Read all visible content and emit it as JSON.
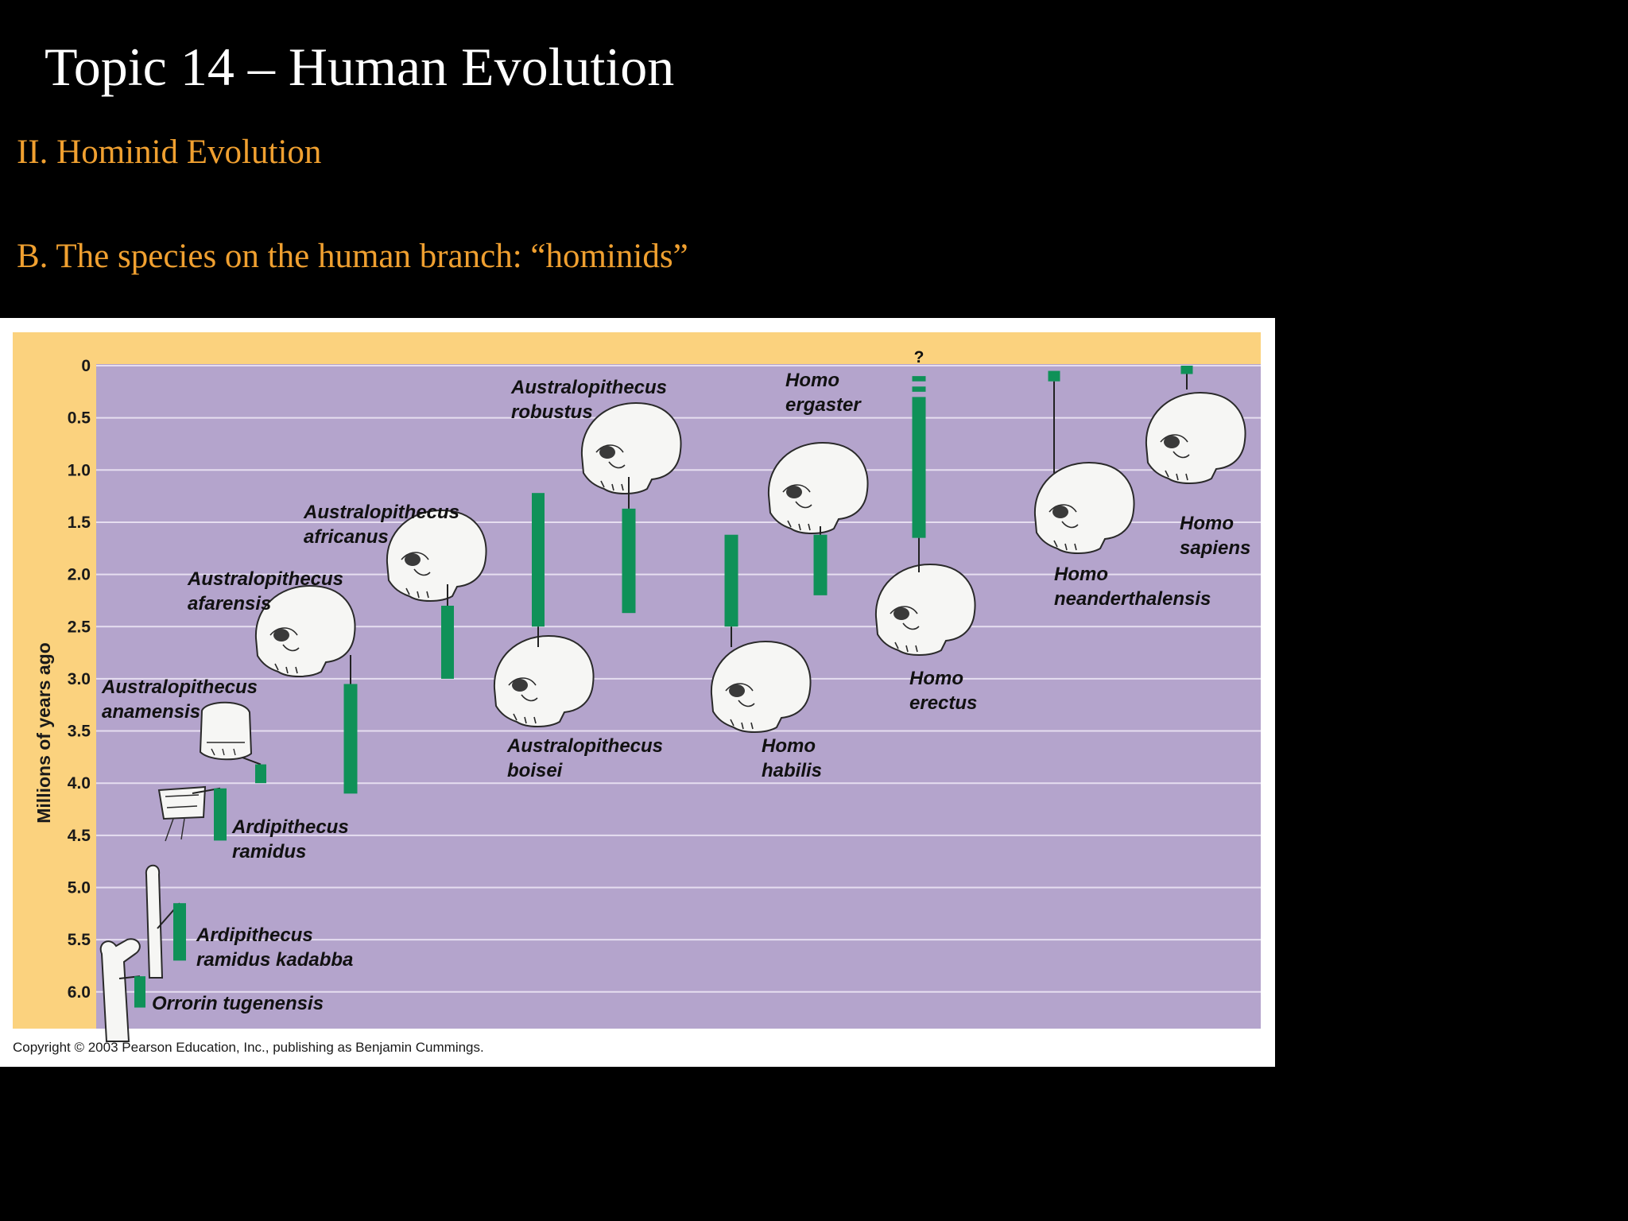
{
  "slide": {
    "title": "Topic 14 – Human Evolution",
    "subtitle1": "II. Hominid Evolution",
    "subtitle2": "B. The species on the human branch: “hominids”"
  },
  "colors": {
    "background": "#000000",
    "title": "#ffffff",
    "subtitle": "#f0a030",
    "plot_area": "#b4a4cc",
    "axis_band": "#fbd27e",
    "bar": "#0f9158"
  },
  "chart_data": {
    "type": "bar",
    "orientation": "floating-vertical-ranges",
    "ylabel": "Millions of years ago",
    "yticks": [
      "0",
      "0.5",
      "1.0",
      "1.5",
      "2.0",
      "2.5",
      "3.0",
      "3.5",
      "4.0",
      "4.5",
      "5.0",
      "5.5",
      "6.0"
    ],
    "ylim": [
      0,
      6.3
    ],
    "y_inverted": true,
    "grid": true,
    "series": [
      {
        "name": "Orrorin tugenensis",
        "lines": [
          "Orrorin tugenensis"
        ],
        "start": 6.15,
        "end": 5.85
      },
      {
        "name": "Ardipithecus ramidus kadabba",
        "lines": [
          "Ardipithecus",
          "ramidus kadabba"
        ],
        "start": 5.7,
        "end": 5.15
      },
      {
        "name": "Ardipithecus ramidus",
        "lines": [
          "Ardipithecus",
          "ramidus"
        ],
        "start": 4.55,
        "end": 4.05
      },
      {
        "name": "Australopithecus anamensis",
        "lines": [
          "Australopithecus",
          "anamensis"
        ],
        "start": 4.0,
        "end": 3.82
      },
      {
        "name": "Australopithecus afarensis",
        "lines": [
          "Australopithecus",
          "afarensis"
        ],
        "start": 4.1,
        "end": 3.05
      },
      {
        "name": "Australopithecus africanus",
        "lines": [
          "Australopithecus",
          "africanus"
        ],
        "start": 3.0,
        "end": 2.3
      },
      {
        "name": "Australopithecus boisei",
        "lines": [
          "Australopithecus",
          "boisei"
        ],
        "start": 2.5,
        "end": 1.22
      },
      {
        "name": "Australopithecus robustus",
        "lines": [
          "Australopithecus",
          "robustus"
        ],
        "start": 2.37,
        "end": 1.37
      },
      {
        "name": "Homo habilis",
        "lines": [
          "Homo",
          "habilis"
        ],
        "start": 2.5,
        "end": 1.62
      },
      {
        "name": "Homo ergaster",
        "lines": [
          "Homo",
          "ergaster"
        ],
        "start": 2.2,
        "end": 1.62
      },
      {
        "name": "Homo erectus",
        "lines": [
          "Homo",
          "erectus"
        ],
        "start": 1.65,
        "end": 0.3,
        "extra_segments": [
          [
            0.25,
            0.2
          ],
          [
            0.15,
            0.1
          ]
        ],
        "question": "?"
      },
      {
        "name": "Homo neanderthalensis",
        "lines": [
          "Homo",
          "neanderthalensis"
        ],
        "start": 0.15,
        "end": 0.05
      },
      {
        "name": "Homo sapiens",
        "lines": [
          "Homo",
          "sapiens"
        ],
        "start": 0.08,
        "end": 0.0
      }
    ]
  },
  "copyright": "Copyright © 2003 Pearson Education, Inc., publishing as Benjamin Cummings."
}
